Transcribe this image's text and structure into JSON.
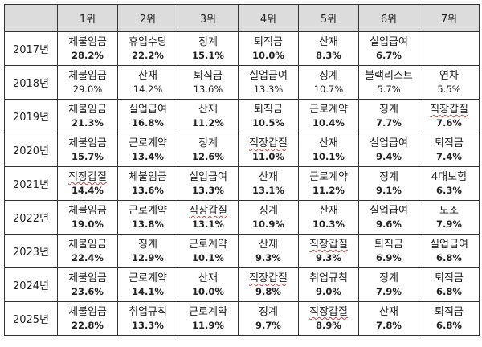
{
  "header": [
    "1위",
    "2위",
    "3위",
    "4위",
    "5위",
    "6위",
    "7위"
  ],
  "rows": [
    {
      "year": "2017년",
      "cells": [
        {
          "cat": "체불임금",
          "pct": "28.2%"
        },
        {
          "cat": "휴업수당",
          "pct": "22.2%"
        },
        {
          "cat": "징계",
          "pct": "15.1%"
        },
        {
          "cat": "퇴직금",
          "pct": "10.0%"
        },
        {
          "cat": "산재",
          "pct": "8.3%"
        },
        {
          "cat": "실업급여",
          "pct": "6.7%"
        },
        {
          "cat": "",
          "pct": ""
        }
      ]
    },
    {
      "year": "2018년",
      "cells": [
        {
          "cat": "체불임금",
          "pct": "29.0%"
        },
        {
          "cat": "산재",
          "pct": "14.2%"
        },
        {
          "cat": "퇴직금",
          "pct": "13.6%"
        },
        {
          "cat": "실업급여",
          "pct": "13.3%"
        },
        {
          "cat": "징계",
          "pct": "10.7%"
        },
        {
          "cat": "블랙리스트",
          "pct": "5.7%"
        },
        {
          "cat": "연차",
          "pct": "5.5%"
        }
      ]
    },
    {
      "year": "2019년",
      "cells": [
        {
          "cat": "체불임금",
          "pct": "21.3%"
        },
        {
          "cat": "실업급여",
          "pct": "16.8%"
        },
        {
          "cat": "산재",
          "pct": "11.2%"
        },
        {
          "cat": "퇴직금",
          "pct": "10.5%"
        },
        {
          "cat": "근로계약",
          "pct": "10.4%"
        },
        {
          "cat": "징계",
          "pct": "7.7%"
        },
        {
          "cat": "직장갑질",
          "pct": "7.6%"
        }
      ]
    },
    {
      "year": "2020년",
      "cells": [
        {
          "cat": "체불임금",
          "pct": "15.7%"
        },
        {
          "cat": "근로계약",
          "pct": "13.4%"
        },
        {
          "cat": "징계",
          "pct": "12.6%"
        },
        {
          "cat": "직장갑질",
          "pct": "11.0%"
        },
        {
          "cat": "산재",
          "pct": "10.1%"
        },
        {
          "cat": "실업급여",
          "pct": "9.4%"
        },
        {
          "cat": "퇴직금",
          "pct": "7.4%"
        }
      ]
    },
    {
      "year": "2021년",
      "cells": [
        {
          "cat": "직장갑질",
          "pct": "14.4%"
        },
        {
          "cat": "체불임금",
          "pct": "13.6%"
        },
        {
          "cat": "실업급여",
          "pct": "13.3%"
        },
        {
          "cat": "산재",
          "pct": "13.1%"
        },
        {
          "cat": "근로계약",
          "pct": "11.2%"
        },
        {
          "cat": "징계",
          "pct": "9.1%"
        },
        {
          "cat": "4대보험",
          "pct": "6.3%"
        }
      ]
    },
    {
      "year": "2022년",
      "cells": [
        {
          "cat": "체불임금",
          "pct": "19.0%"
        },
        {
          "cat": "근로계약",
          "pct": "13.8%"
        },
        {
          "cat": "직장갑질",
          "pct": "13.1%"
        },
        {
          "cat": "징계",
          "pct": "10.9%"
        },
        {
          "cat": "산재",
          "pct": "10.3%"
        },
        {
          "cat": "실업급여",
          "pct": "9.6%"
        },
        {
          "cat": "노조",
          "pct": "7.9%"
        }
      ]
    },
    {
      "year": "2023년",
      "cells": [
        {
          "cat": "체불임금",
          "pct": "22.4%"
        },
        {
          "cat": "징계",
          "pct": "12.9%"
        },
        {
          "cat": "근로계약",
          "pct": "10.1%"
        },
        {
          "cat": "산재",
          "pct": "9.3%"
        },
        {
          "cat": "직장갑질",
          "pct": "9.3%"
        },
        {
          "cat": "퇴직금",
          "pct": "6.9%"
        },
        {
          "cat": "실업급여",
          "pct": "6.8%"
        }
      ]
    },
    {
      "year": "2024년",
      "cells": [
        {
          "cat": "체불임금",
          "pct": "23.6%"
        },
        {
          "cat": "근로계약",
          "pct": "14.1%"
        },
        {
          "cat": "산재",
          "pct": "10.0%"
        },
        {
          "cat": "직장갑질",
          "pct": "9.8%"
        },
        {
          "cat": "취업규칙",
          "pct": "9.0%"
        },
        {
          "cat": "징계",
          "pct": "7.9%"
        },
        {
          "cat": "퇴직금",
          "pct": "6.8%"
        }
      ]
    },
    {
      "year": "2025년",
      "cells": [
        {
          "cat": "체불임금",
          "pct": "22.8%"
        },
        {
          "cat": "취업규칙",
          "pct": "13.3%"
        },
        {
          "cat": "근로계약",
          "pct": "11.9%"
        },
        {
          "cat": "징계",
          "pct": "9.7%"
        },
        {
          "cat": "직장갑질",
          "pct": "8.9%"
        },
        {
          "cat": "산재",
          "pct": "7.8%"
        },
        {
          "cat": "퇴직금",
          "pct": "6.8%"
        }
      ]
    }
  ]
}
